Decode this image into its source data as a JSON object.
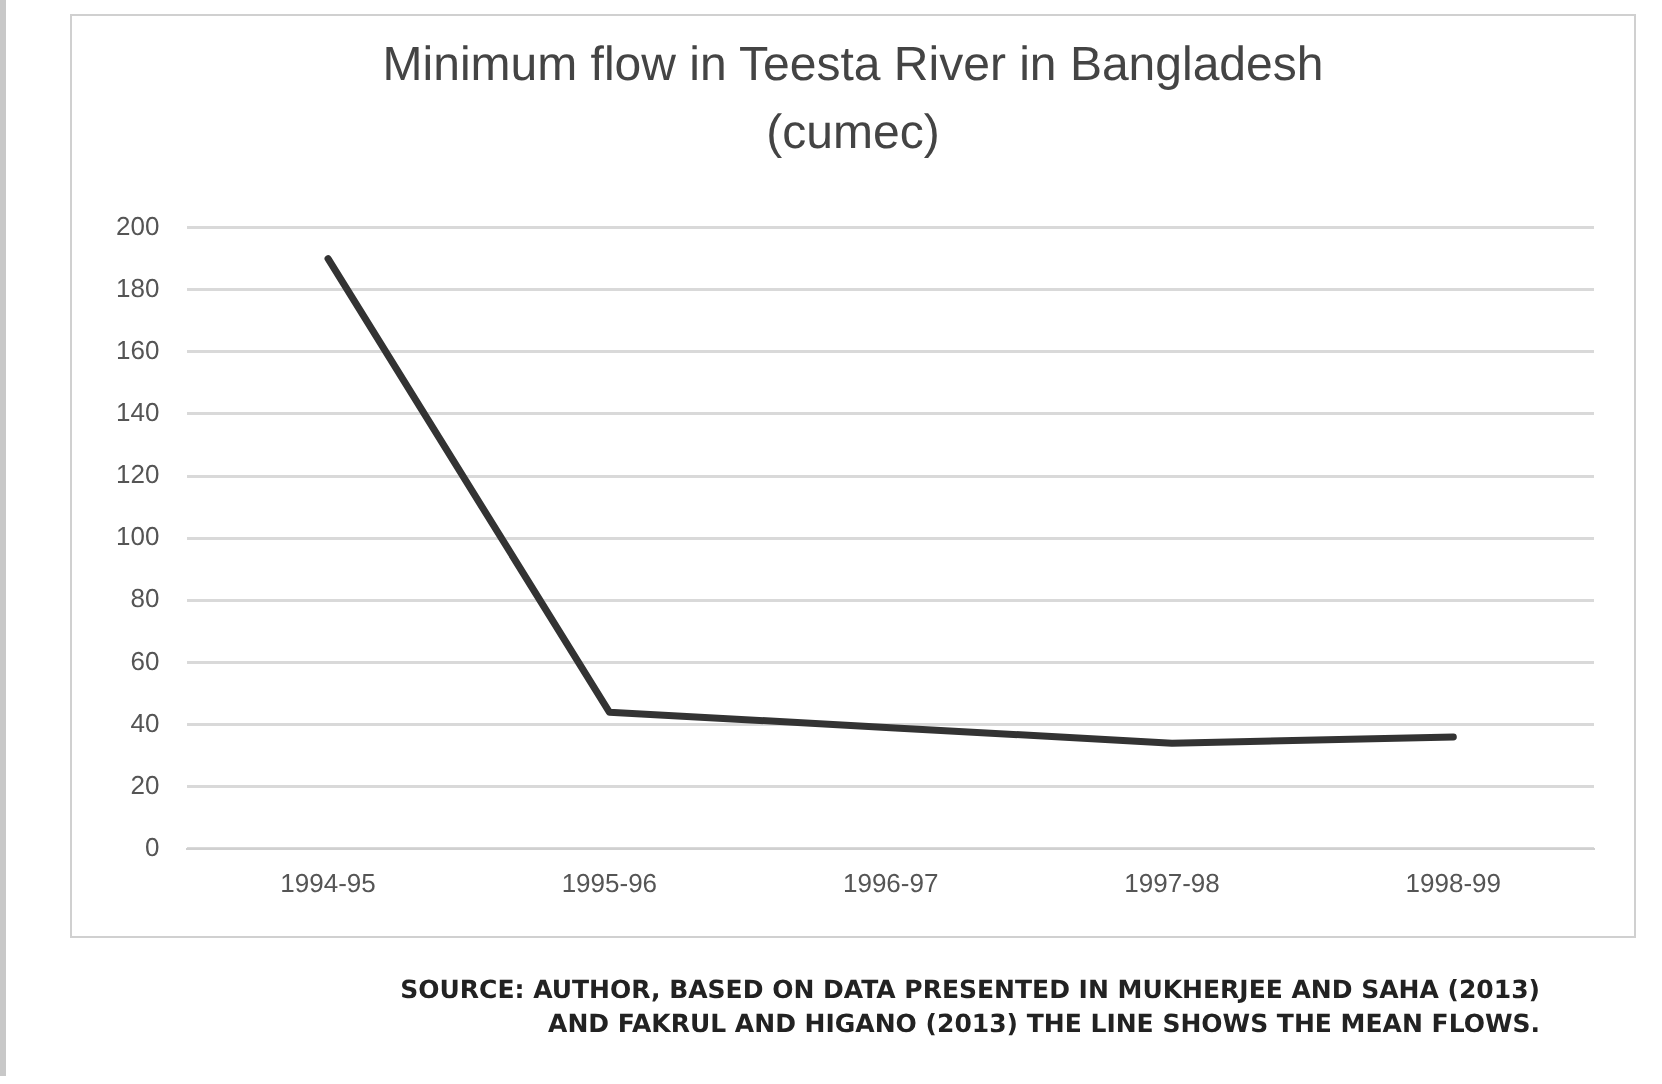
{
  "chart_data": {
    "type": "line",
    "title": "Minimum flow in Teesta River in Bangladesh (cumec)",
    "categories": [
      "1994-95",
      "1995-96",
      "1996-97",
      "1997-98",
      "1998-99"
    ],
    "series": [
      {
        "color": "#333333",
        "values": [
          190,
          44,
          39,
          34,
          36
        ]
      }
    ],
    "ylim": [
      0,
      200
    ],
    "yticks": [
      0,
      20,
      40,
      60,
      80,
      100,
      120,
      140,
      160,
      180,
      200
    ],
    "grid": "y",
    "legend": false,
    "marker": "none",
    "annotations": [
      "SOURCE: AUTHOR, BASED ON DATA PRESENTED IN MUKHERJEE AND SAHA (2013) AND FAKRUL AND HIGANO (2013) THE LINE SHOWS THE MEAN FLOWS."
    ]
  }
}
